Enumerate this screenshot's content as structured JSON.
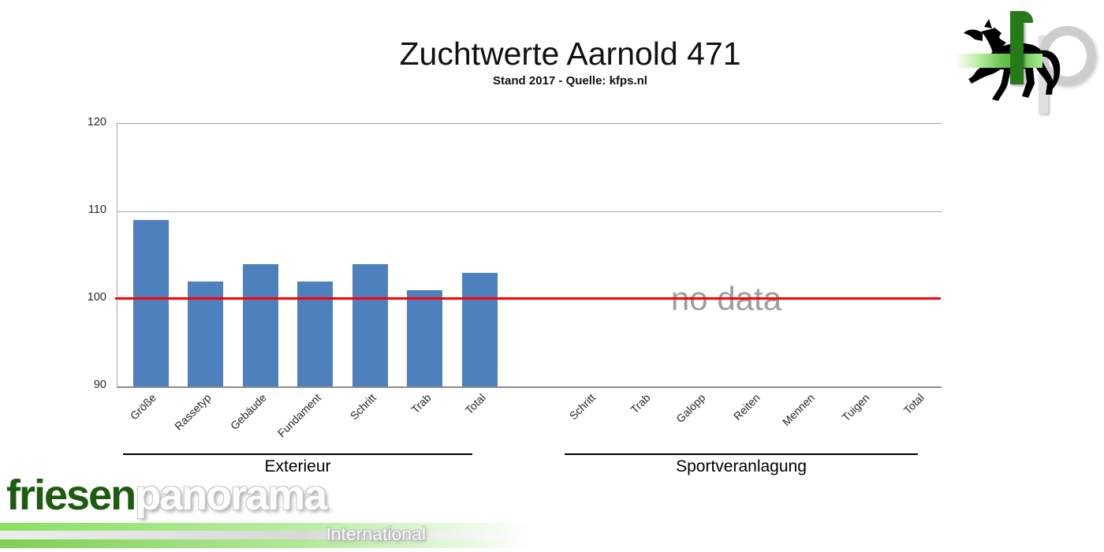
{
  "header": {
    "title": "Zuchtwerte Aarnold 471",
    "subtitle": "Stand 2017 - Quelle: kfps.nl"
  },
  "chart_data": {
    "type": "bar",
    "title": "Zuchtwerte Aarnold 471",
    "subtitle": "Stand 2017 - Quelle: kfps.nl",
    "ylim": [
      90,
      120
    ],
    "yticks": [
      90,
      100,
      110,
      120
    ],
    "grid": "horizontal",
    "legend": "none",
    "bar_color": "#4d80bd",
    "reference_line": {
      "value": 100,
      "color": "#fe0000"
    },
    "groups": [
      {
        "label": "Exterieur",
        "categories": [
          "Größe",
          "Rassetyp",
          "Gebäude",
          "Fundament",
          "Schritt",
          "Trab",
          "Total"
        ],
        "values": [
          109,
          102,
          104,
          102,
          104,
          101,
          103
        ]
      },
      {
        "label": "Sportveranlagung",
        "categories": [
          "Schritt",
          "Trab",
          "Galopp",
          "Reiten",
          "Mennen",
          "Tuigen",
          "Total"
        ],
        "values": [
          null,
          null,
          null,
          null,
          null,
          null,
          null
        ],
        "annotation": "no data"
      }
    ],
    "no_data_label": "no data"
  },
  "branding": {
    "top_right_logo": {
      "letter_f": "f",
      "letter_p": "p",
      "icon": "black-horse"
    },
    "bottom_left_logo": {
      "word1": "friesen",
      "word2": "panorama",
      "word3": "International"
    }
  }
}
